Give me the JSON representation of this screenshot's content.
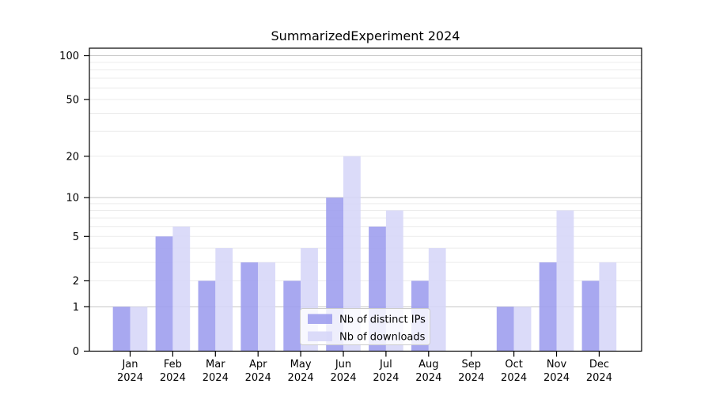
{
  "chart_data": {
    "type": "bar",
    "title": "SummarizedExperiment 2024",
    "categories": [
      "Jan",
      "Feb",
      "Mar",
      "Apr",
      "May",
      "Jun",
      "Jul",
      "Aug",
      "Sep",
      "Oct",
      "Nov",
      "Dec"
    ],
    "category_year": "2024",
    "series": [
      {
        "name": "Nb of distinct IPs",
        "color": "#9c9cee",
        "values": [
          1,
          5,
          2,
          3,
          2,
          10,
          6,
          2,
          0,
          1,
          3,
          2
        ]
      },
      {
        "name": "Nb of downloads",
        "color": "#d6d6f8",
        "values": [
          1,
          6,
          4,
          3,
          4,
          20,
          8,
          4,
          0,
          1,
          8,
          3
        ]
      }
    ],
    "yscale": "log1p",
    "ylim": [
      0,
      113
    ],
    "yticks": [
      0,
      1,
      2,
      5,
      10,
      20,
      50,
      100
    ],
    "gridlines": {
      "major": [
        1,
        10,
        100
      ],
      "minor": [
        2,
        3,
        4,
        5,
        6,
        7,
        8,
        9,
        20,
        30,
        40,
        50,
        60,
        70,
        80,
        90
      ]
    },
    "legend": {
      "position": "lower-center",
      "entries": [
        "Nb of distinct IPs",
        "Nb of downloads"
      ]
    },
    "colors": {
      "bar_opacity": "0.88",
      "grid_minor": "#ececec",
      "grid_major": "#c4c4c4",
      "axis": "#000000",
      "legend_border": "#cccccc",
      "legend_background": "#ffffff",
      "background": "#ffffff"
    }
  }
}
